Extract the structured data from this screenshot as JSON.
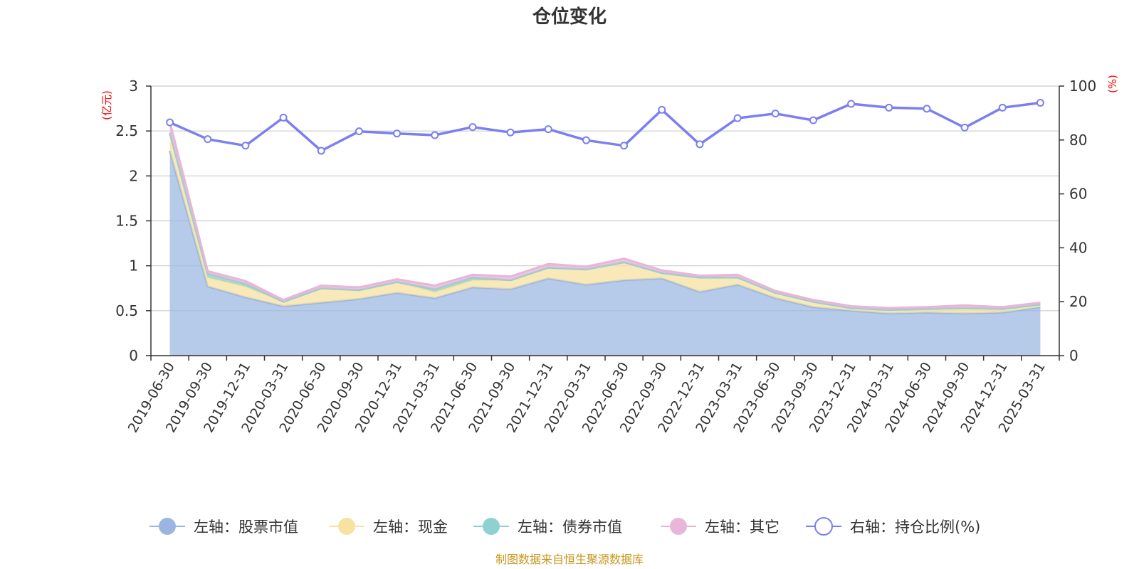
{
  "chart_data": {
    "type": "area",
    "title": "仓位变化",
    "left_unit": "(亿元)",
    "right_unit": "(%)",
    "categories": [
      "2019-06-30",
      "2019-09-30",
      "2019-12-31",
      "2020-03-31",
      "2020-06-30",
      "2020-09-30",
      "2020-12-31",
      "2021-03-31",
      "2021-06-30",
      "2021-09-30",
      "2021-12-31",
      "2022-03-31",
      "2022-06-30",
      "2022-09-30",
      "2022-12-31",
      "2023-03-31",
      "2023-06-30",
      "2023-09-30",
      "2023-12-31",
      "2024-03-31",
      "2024-06-30",
      "2024-09-30",
      "2024-12-31",
      "2025-03-31"
    ],
    "x_ticks": [
      "2019-06-30",
      "2019-09-30",
      "2019-12-31",
      "2020-03-31",
      "2020-06-30",
      "2020-09-30",
      "2020-12-31",
      "2021-03-31",
      "2021-06-30",
      "2021-09-30",
      "2021-12-31",
      "2022-03-31",
      "2022-06-30",
      "2022-09-30",
      "2022-12-31",
      "2023-03-31",
      "2023-06-30",
      "2023-09-30",
      "2023-12-31",
      "2024-03-31",
      "2024-06-30",
      "2024-09-30",
      "2024-12-31",
      "2025-03-31"
    ],
    "left_axis": {
      "min": 0,
      "max": 3,
      "ticks": [
        "0",
        "0.5",
        "1",
        "1.5",
        "2",
        "2.5",
        "3"
      ]
    },
    "right_axis": {
      "min": 0,
      "max": 100,
      "ticks": [
        "0",
        "20",
        "40",
        "60",
        "80",
        "100"
      ]
    },
    "grid": true,
    "legend_position": "bottom",
    "series": [
      {
        "name": "左轴：股票市值",
        "axis": "left",
        "stack": true,
        "color": "#9ab6e0",
        "values": [
          2.28,
          0.77,
          0.65,
          0.55,
          0.59,
          0.63,
          0.7,
          0.64,
          0.76,
          0.74,
          0.86,
          0.79,
          0.84,
          0.86,
          0.71,
          0.79,
          0.64,
          0.54,
          0.5,
          0.47,
          0.48,
          0.47,
          0.48,
          0.54
        ]
      },
      {
        "name": "左轴：现金",
        "axis": "left",
        "stack": true,
        "color": "#f7e2a1",
        "values": [
          0.2,
          0.1,
          0.12,
          0.05,
          0.16,
          0.1,
          0.12,
          0.07,
          0.08,
          0.1,
          0.12,
          0.17,
          0.2,
          0.06,
          0.16,
          0.08,
          0.06,
          0.06,
          0.03,
          0.04,
          0.04,
          0.05,
          0.04,
          0.03
        ]
      },
      {
        "name": "左轴：债券市值",
        "axis": "left",
        "stack": true,
        "color": "#8fd1d1",
        "values": [
          0.0,
          0.04,
          0.03,
          0.0,
          0.0,
          0.0,
          0.0,
          0.03,
          0.03,
          0.0,
          0.0,
          0.0,
          0.0,
          0.0,
          0.0,
          0.0,
          0.0,
          0.0,
          0.0,
          0.0,
          0.0,
          0.01,
          0.0,
          0.0
        ]
      },
      {
        "name": "左轴：其它",
        "axis": "left",
        "stack": true,
        "color": "#e8b6d8",
        "values": [
          0.12,
          0.03,
          0.03,
          0.02,
          0.03,
          0.03,
          0.03,
          0.04,
          0.03,
          0.04,
          0.04,
          0.03,
          0.04,
          0.03,
          0.02,
          0.03,
          0.02,
          0.02,
          0.02,
          0.02,
          0.02,
          0.03,
          0.02,
          0.02
        ]
      },
      {
        "name": "右轴：持仓比例(%)",
        "axis": "right",
        "stack": false,
        "color": "#7b7ff0",
        "values": [
          86.5,
          80.3,
          77.9,
          88.3,
          76.0,
          83.2,
          82.4,
          81.8,
          84.8,
          82.8,
          84.0,
          79.9,
          77.9,
          91.2,
          78.4,
          88.1,
          89.8,
          87.3,
          93.4,
          92.0,
          91.6,
          84.6,
          92.0,
          93.8
        ]
      }
    ],
    "source_note": "制图数据来自恒生聚源数据库"
  }
}
